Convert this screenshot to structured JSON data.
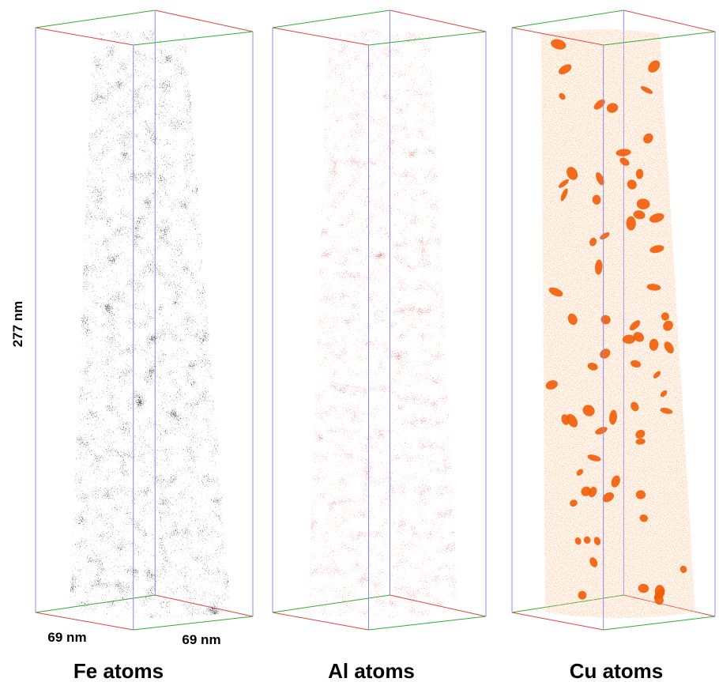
{
  "dimensions": {
    "height": "277 nm",
    "depth": "69 nm",
    "width": "69 nm"
  },
  "panels": [
    {
      "label": "Fe atoms"
    },
    {
      "label": "Al atoms"
    },
    {
      "label": "Cu atoms"
    }
  ]
}
